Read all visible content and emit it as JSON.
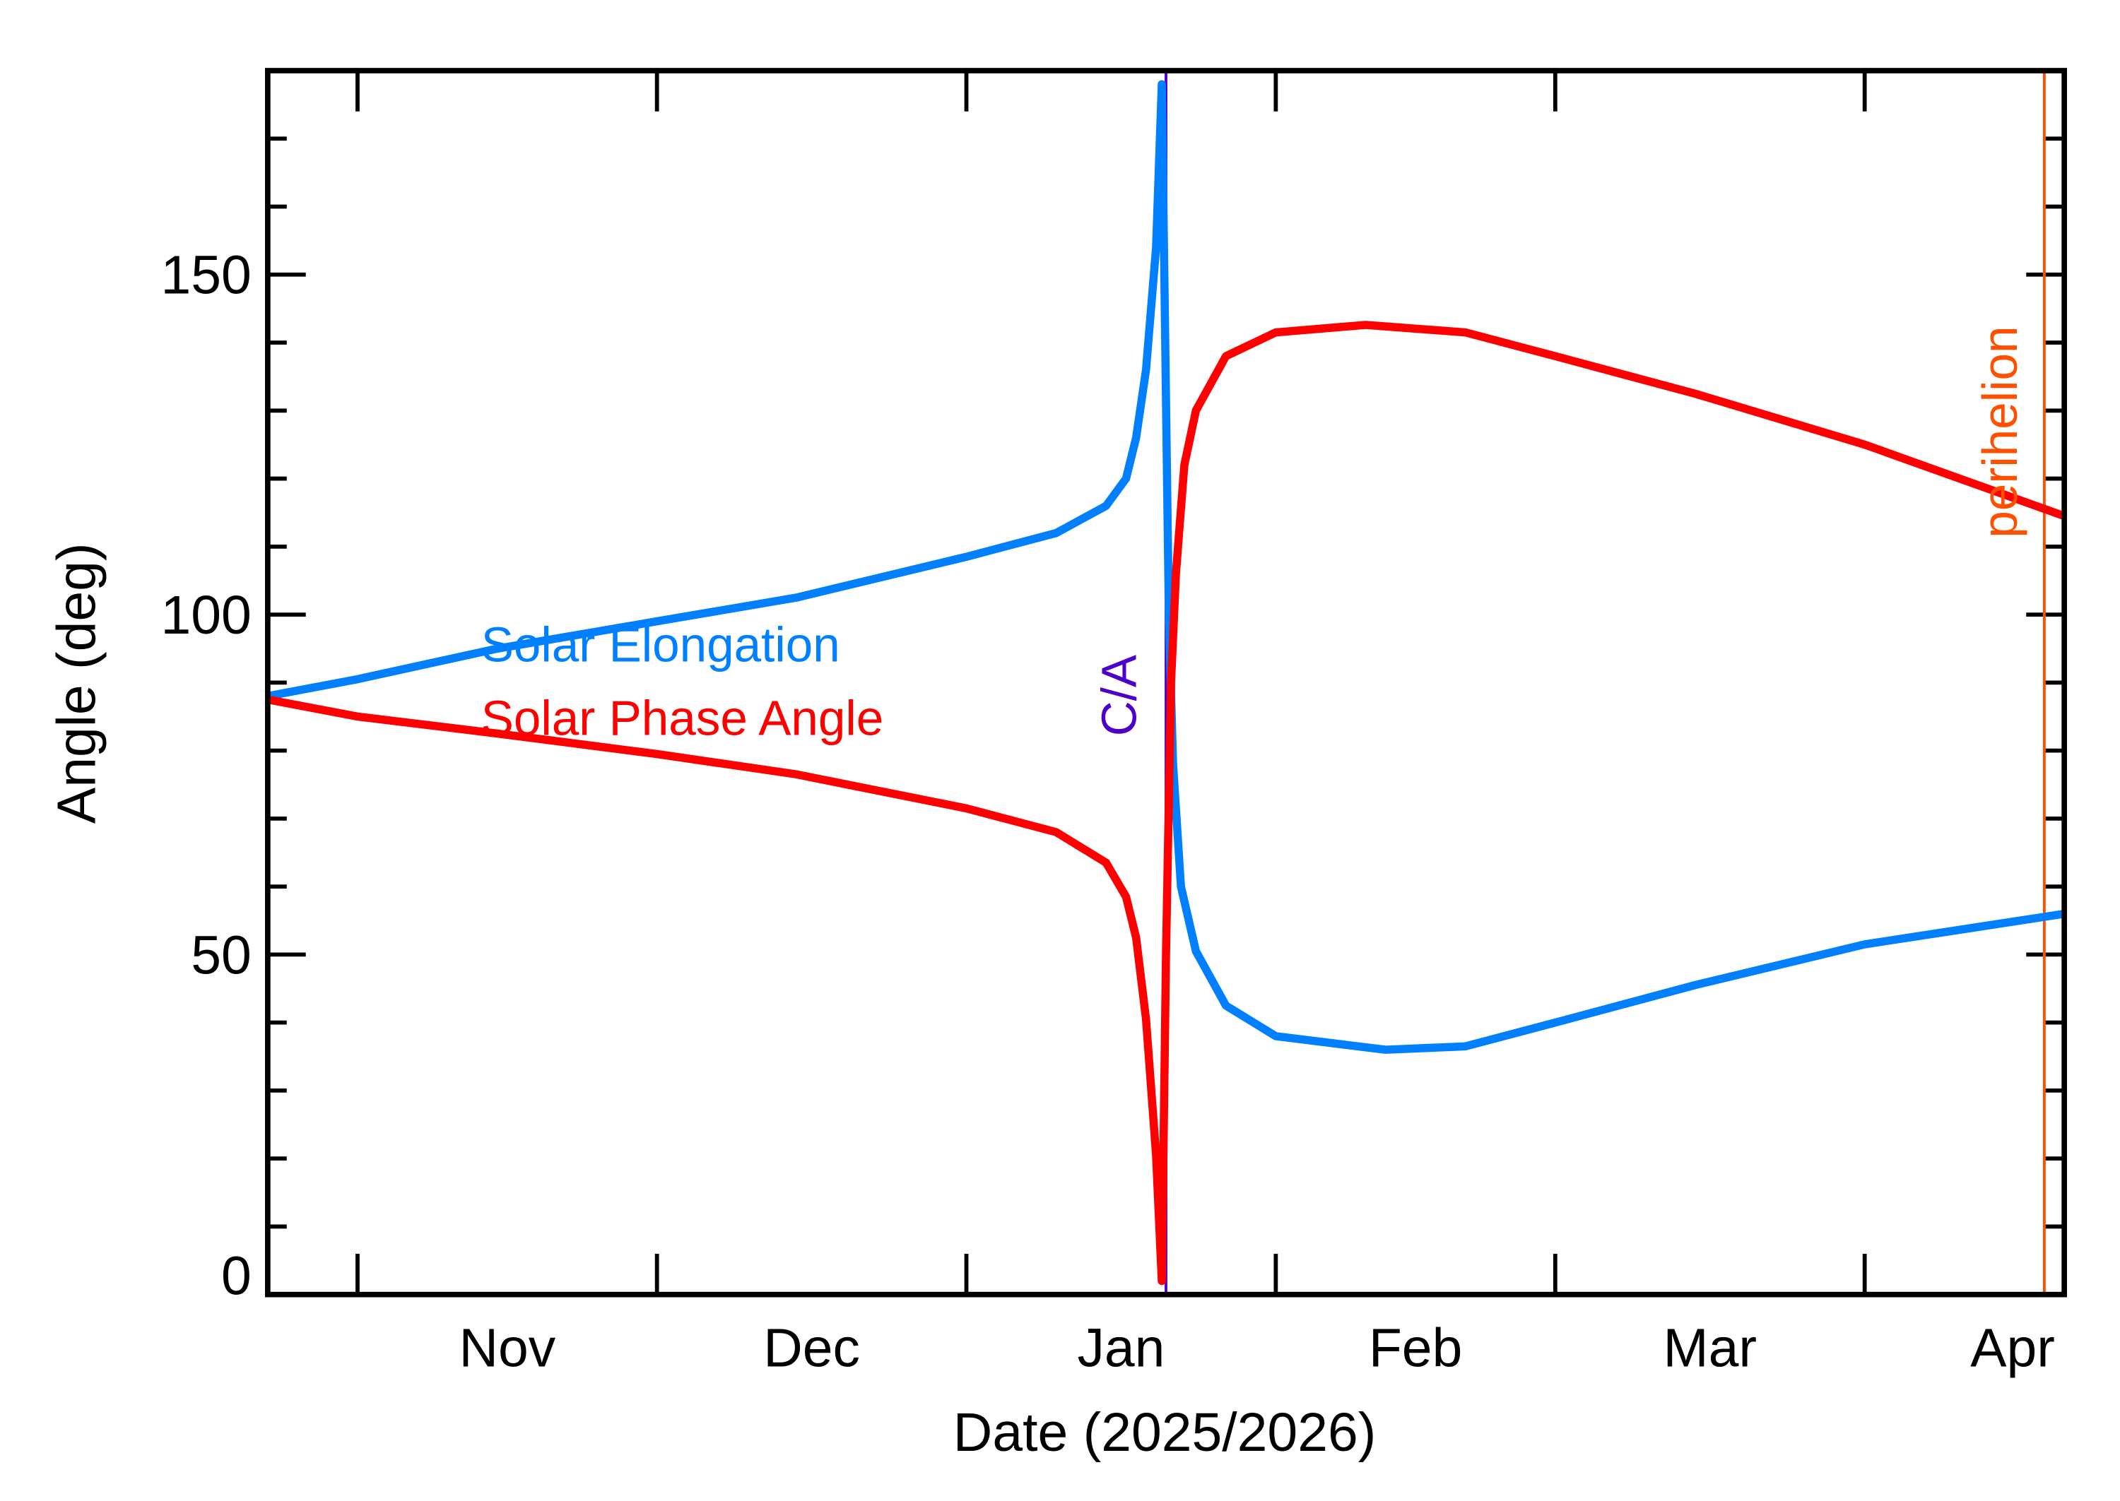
{
  "chart_data": {
    "type": "line",
    "title": "",
    "xlabel": "Date (2025/2026)",
    "ylabel": "Angle (deg)",
    "xlim": [
      "2025-10-23",
      "2026-04-21"
    ],
    "ylim": [
      0,
      180
    ],
    "grid": false,
    "x_ticks": [
      {
        "date": "2025-11-01",
        "label": "Nov"
      },
      {
        "date": "2025-12-01",
        "label": "Dec"
      },
      {
        "date": "2026-01-01",
        "label": "Jan"
      },
      {
        "date": "2026-02-01",
        "label": "Feb"
      },
      {
        "date": "2026-03-01",
        "label": "Mar"
      },
      {
        "date": "2026-04-01",
        "label": "Apr"
      }
    ],
    "y_ticks": [
      {
        "value": 0,
        "label": "0"
      },
      {
        "value": 50,
        "label": "50"
      },
      {
        "value": 100,
        "label": "100"
      },
      {
        "value": 150,
        "label": "150"
      }
    ],
    "y_minor_step": 10,
    "legend_placement": "upper-left (inline text)",
    "series": [
      {
        "name": "Solar Elongation",
        "color": "#0080FF",
        "points": [
          [
            "2025-10-23",
            88
          ],
          [
            "2025-11-01",
            90.5
          ],
          [
            "2025-11-15",
            95
          ],
          [
            "2025-12-01",
            99
          ],
          [
            "2025-12-15",
            102.5
          ],
          [
            "2026-01-01",
            108.5
          ],
          [
            "2026-01-10",
            112
          ],
          [
            "2026-01-15",
            116
          ],
          [
            "2026-01-17",
            120
          ],
          [
            "2026-01-18",
            126
          ],
          [
            "2026-01-19",
            136
          ],
          [
            "2026-01-20",
            154
          ],
          [
            "2026-01-20T14:00",
            178
          ],
          [
            "2026-01-21T07:00",
            100
          ],
          [
            "2026-01-21T17:00",
            78
          ],
          [
            "2026-01-22T12:00",
            60
          ],
          [
            "2026-01-24",
            50.5
          ],
          [
            "2026-01-27",
            42.5
          ],
          [
            "2026-02-01",
            38
          ],
          [
            "2026-02-12",
            36
          ],
          [
            "2026-02-20",
            36.5
          ],
          [
            "2026-03-01",
            40
          ],
          [
            "2026-03-15",
            45.5
          ],
          [
            "2026-04-01",
            51.5
          ],
          [
            "2026-04-21",
            56
          ]
        ]
      },
      {
        "name": "Solar Phase Angle",
        "color": "#FF0000",
        "points": [
          [
            "2025-10-23",
            87.5
          ],
          [
            "2025-11-01",
            85
          ],
          [
            "2025-11-15",
            82.5
          ],
          [
            "2025-12-01",
            79.5
          ],
          [
            "2025-12-15",
            76.5
          ],
          [
            "2026-01-01",
            71.5
          ],
          [
            "2026-01-10",
            68
          ],
          [
            "2026-01-15",
            63.5
          ],
          [
            "2026-01-17",
            58.5
          ],
          [
            "2026-01-18",
            52.5
          ],
          [
            "2026-01-19",
            40.5
          ],
          [
            "2026-01-20",
            20.5
          ],
          [
            "2026-01-20T14:00",
            2
          ],
          [
            "2026-01-21T00:00",
            50
          ],
          [
            "2026-01-21T12:00",
            90
          ],
          [
            "2026-01-22",
            106
          ],
          [
            "2026-01-22T20:00",
            122
          ],
          [
            "2026-01-24",
            130
          ],
          [
            "2026-01-27",
            138
          ],
          [
            "2026-02-01",
            141.5
          ],
          [
            "2026-02-10",
            142.6
          ],
          [
            "2026-02-20",
            141.5
          ],
          [
            "2026-03-01",
            138
          ],
          [
            "2026-03-15",
            132.5
          ],
          [
            "2026-04-01",
            125
          ],
          [
            "2026-04-21",
            114.5
          ]
        ]
      }
    ],
    "annotations": [
      {
        "label": "C/A",
        "date": "2026-01-21",
        "color": "#4B00CC"
      },
      {
        "label": "perihelion",
        "date": "2026-04-19",
        "color": "#FF5000"
      }
    ]
  }
}
